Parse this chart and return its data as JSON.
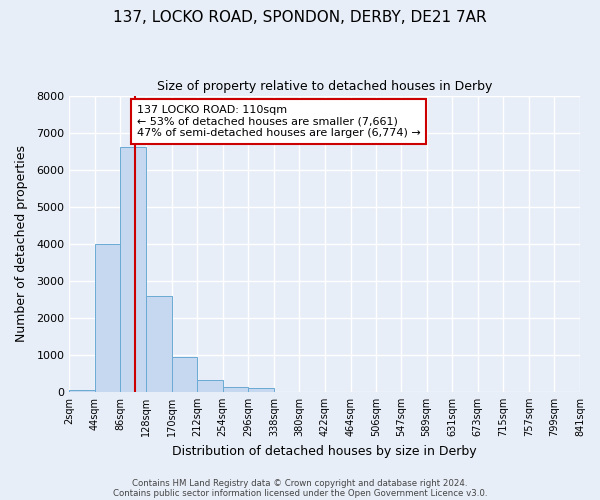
{
  "title": "137, LOCKO ROAD, SPONDON, DERBY, DE21 7AR",
  "subtitle": "Size of property relative to detached houses in Derby",
  "xlabel": "Distribution of detached houses by size in Derby",
  "ylabel": "Number of detached properties",
  "bin_edges": [
    2,
    44,
    86,
    128,
    170,
    212,
    254,
    296,
    338,
    380,
    422,
    464,
    506,
    547,
    589,
    631,
    673,
    715,
    757,
    799,
    841
  ],
  "bar_heights": [
    50,
    4000,
    6600,
    2600,
    950,
    325,
    120,
    100,
    0,
    0,
    0,
    0,
    0,
    0,
    0,
    0,
    0,
    0,
    0,
    0
  ],
  "bar_color": "#c5d8f0",
  "bar_edge_color": "#6aaad4",
  "background_color": "#e8eef8",
  "grid_color": "#ffffff",
  "vline_x": 110,
  "vline_color": "#cc0000",
  "annotation_text": "137 LOCKO ROAD: 110sqm\n← 53% of detached houses are smaller (7,661)\n47% of semi-detached houses are larger (6,774) →",
  "annotation_box_facecolor": "#ffffff",
  "annotation_box_edgecolor": "#cc0000",
  "ylim": [
    0,
    8000
  ],
  "yticks": [
    0,
    1000,
    2000,
    3000,
    4000,
    5000,
    6000,
    7000,
    8000
  ],
  "footer1": "Contains HM Land Registry data © Crown copyright and database right 2024.",
  "footer2": "Contains public sector information licensed under the Open Government Licence v3.0."
}
